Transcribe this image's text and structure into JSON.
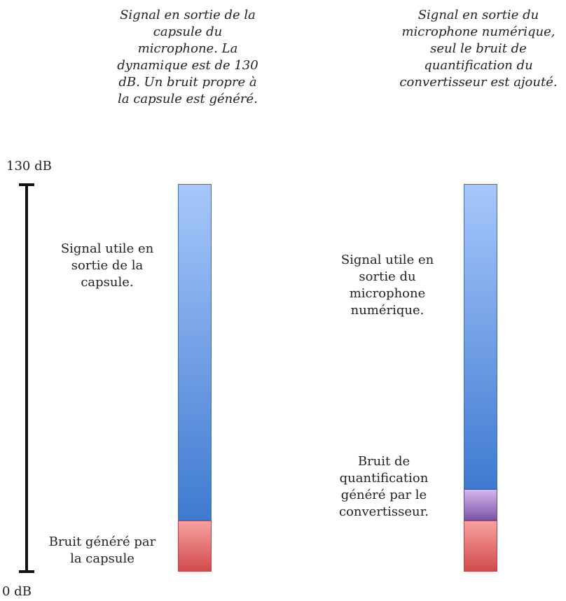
{
  "captions": {
    "left": "Signal en sortie de la\ncapsule du\nmicrophone. La\ndynamique est de 130\ndB.  Un bruit propre à\nla capsule est généré.",
    "right": "Signal en sortie du\nmicrophone numérique,\nseul le bruit de\nquantification du\nconvertisseur est ajouté."
  },
  "scale": {
    "top_label": "130 dB",
    "bottom_label": "0 dB"
  },
  "left_bar": {
    "signal_label": "Signal utile en\nsortie de la\ncapsule.",
    "noise_label": "Bruit généré par\nla capsule"
  },
  "right_bar": {
    "signal_label": "Signal utile en\nsortie du\nmicrophone\nnumérique.",
    "quant_label": "Bruit de\nquantification\ngénéré par le\nconvertisseur."
  },
  "colors": {
    "signal_top": "#a7c7fb",
    "signal_bottom": "#3f7ad0",
    "noise_top": "#f7a1a1",
    "noise_bottom": "#d24b4b",
    "quant_top": "#d6b6ef",
    "quant_bottom": "#7a55a8"
  }
}
